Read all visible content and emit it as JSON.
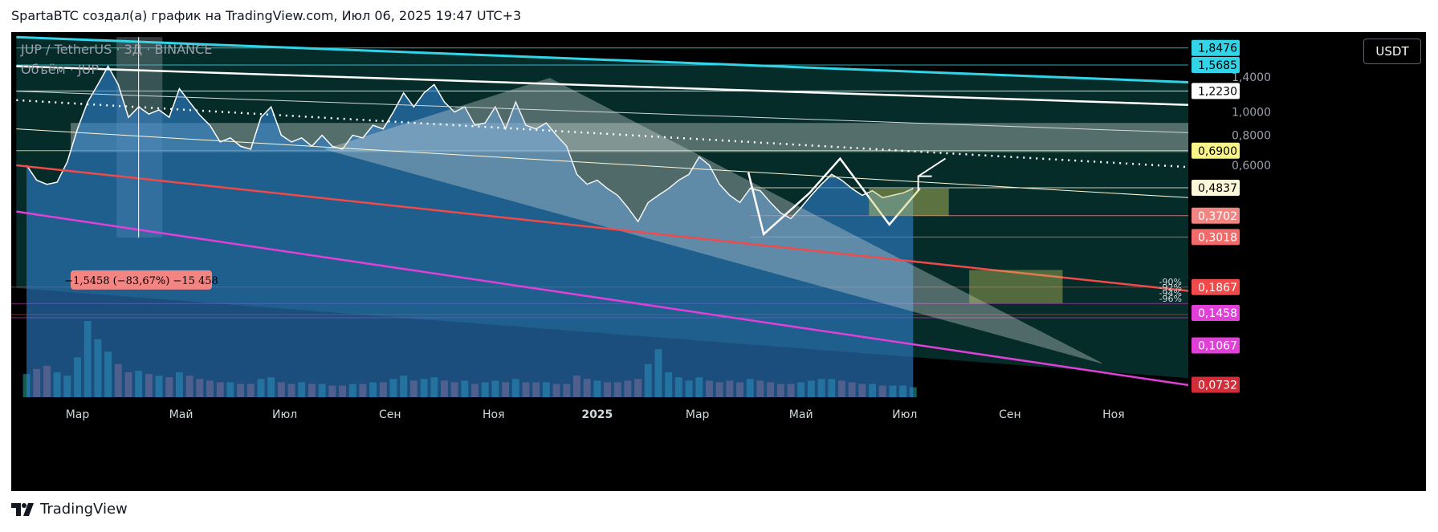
{
  "header": {
    "attribution": "SpartaBTC создал(а) график на TradingView.com, Июл 06, 2025 19:47 UTC+3"
  },
  "legend": {
    "symbol": "JUP / TetherUS · 3Д · BINANCE",
    "volume": "Объём · JUP"
  },
  "currency_button": "USDT",
  "footer": {
    "brand": "TradingView"
  },
  "colors": {
    "background": "#000000",
    "channel_fill": "#062c29",
    "area_fill": "#2f82d0",
    "cyan_line": "#32d4e8",
    "red_line": "#f04a4a",
    "magenta_line": "#e040d8",
    "zone_fill": "#c7d3cf",
    "box_fill": "#c7c860"
  },
  "chart_data": {
    "type": "area",
    "x_axis": {
      "ticks": [
        "Мар",
        "Май",
        "Июл",
        "Сен",
        "Ноя",
        "2025",
        "Мар",
        "Май",
        "Июл",
        "Сен",
        "Ноя"
      ],
      "tick_dates": [
        "2024-03-01",
        "2024-05-01",
        "2024-07-01",
        "2024-09-01",
        "2024-11-01",
        "2025-01-01",
        "2025-03-01",
        "2025-05-01",
        "2025-07-01",
        "2025-09-01",
        "2025-11-01"
      ],
      "range": [
        "2024-01-22",
        "2025-12-15"
      ]
    },
    "y_axis": {
      "scale": "log",
      "range": [
        0.065,
        2.15
      ],
      "ticks": [
        1.4,
        1.0,
        0.8,
        0.6
      ]
    },
    "series": [
      {
        "dates": [
          "2024-01-31",
          "2024-02-06",
          "2024-02-12",
          "2024-02-18",
          "2024-02-24",
          "2024-03-01",
          "2024-03-07",
          "2024-03-13",
          "2024-03-19",
          "2024-03-25",
          "2024-03-31",
          "2024-04-06",
          "2024-04-12",
          "2024-04-18",
          "2024-04-24",
          "2024-04-30",
          "2024-05-06",
          "2024-05-12",
          "2024-05-18",
          "2024-05-24",
          "2024-05-30",
          "2024-06-05",
          "2024-06-11",
          "2024-06-17",
          "2024-06-23",
          "2024-06-29",
          "2024-07-05",
          "2024-07-11",
          "2024-07-17",
          "2024-07-23",
          "2024-07-29",
          "2024-08-04",
          "2024-08-10",
          "2024-08-16",
          "2024-08-22",
          "2024-08-28",
          "2024-09-03",
          "2024-09-09",
          "2024-09-15",
          "2024-09-21",
          "2024-09-27",
          "2024-10-03",
          "2024-10-09",
          "2024-10-15",
          "2024-10-21",
          "2024-10-27",
          "2024-11-02",
          "2024-11-08",
          "2024-11-14",
          "2024-11-20",
          "2024-11-26",
          "2024-12-02",
          "2024-12-08",
          "2024-12-14",
          "2024-12-20",
          "2024-12-26",
          "2025-01-01",
          "2025-01-07",
          "2025-01-13",
          "2025-01-19",
          "2025-01-25",
          "2025-01-31",
          "2025-02-06",
          "2025-02-12",
          "2025-02-18",
          "2025-02-24",
          "2025-03-02",
          "2025-03-08",
          "2025-03-14",
          "2025-03-20",
          "2025-03-26",
          "2025-04-01",
          "2025-04-07",
          "2025-04-13",
          "2025-04-19",
          "2025-04-25",
          "2025-05-01",
          "2025-05-07",
          "2025-05-13",
          "2025-05-19",
          "2025-05-25",
          "2025-05-31",
          "2025-06-06",
          "2025-06-12",
          "2025-06-18",
          "2025-06-24",
          "2025-06-30",
          "2025-07-06"
        ],
        "values": [
          0.6,
          0.52,
          0.5,
          0.51,
          0.62,
          0.85,
          1.1,
          1.3,
          1.55,
          1.3,
          0.95,
          1.05,
          0.98,
          1.02,
          0.95,
          1.25,
          1.1,
          0.97,
          0.88,
          0.75,
          0.78,
          0.72,
          0.7,
          0.95,
          1.05,
          0.8,
          0.75,
          0.78,
          0.72,
          0.8,
          0.72,
          0.7,
          0.8,
          0.78,
          0.88,
          0.85,
          1.0,
          1.2,
          1.05,
          1.2,
          1.3,
          1.1,
          1.0,
          1.05,
          0.88,
          0.9,
          1.05,
          0.85,
          1.1,
          0.88,
          0.85,
          0.9,
          0.8,
          0.72,
          0.55,
          0.5,
          0.52,
          0.48,
          0.45,
          0.4,
          0.35,
          0.42,
          0.45,
          0.48,
          0.52,
          0.55,
          0.65,
          0.6,
          0.5,
          0.45,
          0.42,
          0.48,
          0.47,
          0.42,
          0.38,
          0.36,
          0.4,
          0.45,
          0.5,
          0.55,
          0.52,
          0.48,
          0.45,
          0.47,
          0.44,
          0.45,
          0.46,
          0.48
        ]
      }
    ],
    "volume": [
      28,
      34,
      38,
      30,
      26,
      48,
      92,
      70,
      55,
      40,
      30,
      32,
      28,
      26,
      24,
      30,
      26,
      22,
      20,
      18,
      18,
      16,
      16,
      22,
      24,
      18,
      16,
      18,
      16,
      16,
      14,
      14,
      16,
      16,
      18,
      18,
      22,
      26,
      20,
      22,
      24,
      20,
      18,
      20,
      16,
      18,
      20,
      18,
      22,
      18,
      18,
      18,
      16,
      16,
      26,
      22,
      20,
      18,
      18,
      20,
      22,
      40,
      58,
      30,
      24,
      20,
      24,
      20,
      18,
      20,
      18,
      22,
      20,
      18,
      16,
      16,
      18,
      20,
      22,
      22,
      20,
      18,
      16,
      16,
      14,
      14,
      14,
      12
    ],
    "price_labels": [
      {
        "text": "1,8476",
        "value": 1.8476,
        "bg": "#32d4e8",
        "fg": "#000000"
      },
      {
        "text": "1,5685",
        "value": 1.5685,
        "bg": "#32d4e8",
        "fg": "#000000"
      },
      {
        "text": "1,2230",
        "value": 1.223,
        "bg": "#ffffff",
        "fg": "#000000"
      },
      {
        "text": "0,6900",
        "value": 0.69,
        "bg": "#f8f48a",
        "fg": "#000000"
      },
      {
        "text": "0,4837",
        "value": 0.4837,
        "bg": "#fcf7d8",
        "fg": "#000000"
      },
      {
        "text": "0,3702",
        "value": 0.3702,
        "bg": "#f28482",
        "fg": "#ffffff"
      },
      {
        "text": "0,3018",
        "value": 0.3018,
        "bg": "#f26b6b",
        "fg": "#ffffff"
      },
      {
        "text": "0,1867",
        "value": 0.1867,
        "bg": "#f04a4a",
        "fg": "#ffffff"
      },
      {
        "text": "0,1458",
        "value": 0.1458,
        "bg": "#e040d8",
        "fg": "#ffffff"
      },
      {
        "text": "0,1067",
        "value": 0.1067,
        "bg": "#e040d8",
        "fg": "#ffffff"
      },
      {
        "text": "0,0732",
        "value": 0.0732,
        "bg": "#d12e3a",
        "fg": "#ffffff"
      }
    ],
    "measure_label": "−1,5458 (−83,67%) −15 458",
    "fib_labels": [
      "-90%",
      "-92%",
      "-94%",
      "-96%"
    ],
    "fib_values": [
      0.1867,
      0.162,
      0.148,
      0.1458
    ]
  }
}
